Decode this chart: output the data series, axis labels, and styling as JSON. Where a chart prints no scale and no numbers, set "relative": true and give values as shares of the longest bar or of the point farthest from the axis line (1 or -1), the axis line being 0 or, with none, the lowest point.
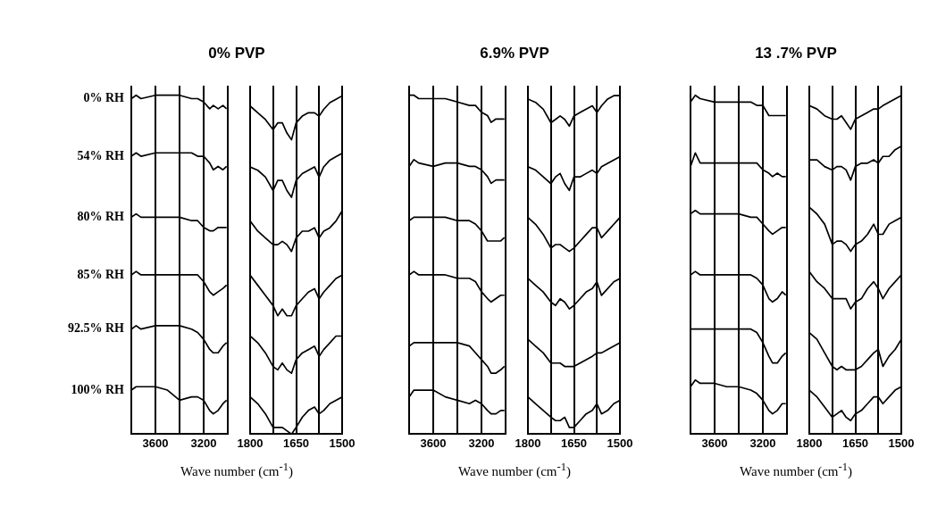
{
  "chart_data": [
    {
      "type": "line",
      "relative": true,
      "title": "0% PVP",
      "xlabel": "Wave number (cm$^{-1}$)",
      "xlim": [
        3800,
        3000
      ],
      "xticks": [
        3600,
        {
          "value": 3400,
          "label": null
        },
        3200
      ],
      "grid": "x",
      "x": [
        3800,
        3760,
        3720,
        3600,
        3500,
        3400,
        3300,
        3250,
        3200,
        3150,
        3120,
        3080,
        3040,
        3010
      ],
      "series": [
        {
          "name": "0% RH",
          "color": "#000000",
          "values": [
            0.99,
            1.0,
            0.99,
            1.0,
            1.0,
            1.0,
            0.99,
            0.99,
            0.98,
            0.96,
            0.97,
            0.96,
            0.97,
            0.96
          ]
        },
        {
          "name": "54% RH",
          "color": "#000000",
          "values": [
            0.82,
            0.83,
            0.82,
            0.83,
            0.83,
            0.83,
            0.83,
            0.82,
            0.82,
            0.8,
            0.78,
            0.79,
            0.78,
            0.79
          ]
        },
        {
          "name": "80% RH",
          "color": "#000000",
          "values": [
            0.64,
            0.65,
            0.64,
            0.64,
            0.64,
            0.64,
            0.63,
            0.63,
            0.61,
            0.6,
            0.6,
            0.61,
            0.61,
            0.61
          ]
        },
        {
          "name": "85% RH",
          "color": "#000000",
          "values": [
            0.47,
            0.48,
            0.47,
            0.47,
            0.47,
            0.47,
            0.47,
            0.47,
            0.45,
            0.42,
            0.41,
            0.42,
            0.43,
            0.44
          ]
        },
        {
          "name": "92.5% RH",
          "color": "#000000",
          "values": [
            0.31,
            0.32,
            0.31,
            0.32,
            0.32,
            0.32,
            0.31,
            0.3,
            0.28,
            0.25,
            0.24,
            0.24,
            0.26,
            0.27
          ]
        },
        {
          "name": "100% RH",
          "color": "#000000",
          "values": [
            0.13,
            0.14,
            0.14,
            0.14,
            0.13,
            0.1,
            0.11,
            0.11,
            0.1,
            0.07,
            0.06,
            0.07,
            0.09,
            0.1
          ]
        }
      ]
    },
    {
      "type": "line",
      "relative": true,
      "xlim": [
        1800,
        1500
      ],
      "xticks": [
        1800,
        {
          "value": 1725,
          "label": null
        },
        1650,
        {
          "value": 1575,
          "label": null
        },
        1500
      ],
      "grid": "x",
      "x": [
        1800,
        1775,
        1750,
        1725,
        1710,
        1695,
        1680,
        1665,
        1650,
        1630,
        1610,
        1590,
        1575,
        1560,
        1540,
        1520,
        1500
      ],
      "series": [
        {
          "color": "#000000",
          "values": [
            0.97,
            0.95,
            0.93,
            0.9,
            0.92,
            0.92,
            0.89,
            0.87,
            0.92,
            0.94,
            0.95,
            0.95,
            0.94,
            0.96,
            0.98,
            0.99,
            1.0
          ]
        },
        {
          "color": "#000000",
          "values": [
            0.79,
            0.78,
            0.76,
            0.72,
            0.75,
            0.75,
            0.72,
            0.7,
            0.75,
            0.77,
            0.78,
            0.79,
            0.76,
            0.79,
            0.81,
            0.82,
            0.83
          ]
        },
        {
          "color": "#000000",
          "values": [
            0.63,
            0.6,
            0.58,
            0.56,
            0.56,
            0.57,
            0.56,
            0.54,
            0.58,
            0.6,
            0.6,
            0.61,
            0.58,
            0.6,
            0.61,
            0.63,
            0.66
          ]
        },
        {
          "color": "#000000",
          "values": [
            0.47,
            0.44,
            0.41,
            0.38,
            0.35,
            0.37,
            0.35,
            0.35,
            0.38,
            0.4,
            0.42,
            0.43,
            0.4,
            0.42,
            0.44,
            0.46,
            0.47
          ]
        },
        {
          "color": "#000000",
          "values": [
            0.29,
            0.27,
            0.24,
            0.2,
            0.19,
            0.21,
            0.19,
            0.18,
            0.22,
            0.24,
            0.25,
            0.26,
            0.23,
            0.25,
            0.27,
            0.29,
            0.29
          ]
        },
        {
          "color": "#000000",
          "values": [
            0.11,
            0.09,
            0.06,
            0.02,
            0.02,
            0.02,
            0.01,
            0.0,
            0.02,
            0.05,
            0.07,
            0.08,
            0.06,
            0.07,
            0.09,
            0.1,
            0.11
          ]
        }
      ]
    },
    {
      "type": "line",
      "relative": true,
      "title": "6.9% PVP",
      "xlabel": "Wave number (cm$^{-1}$)",
      "xlim": [
        3800,
        3000
      ],
      "xticks": [
        3600,
        {
          "value": 3400,
          "label": null
        },
        3200
      ],
      "grid": "x",
      "x": [
        3800,
        3760,
        3720,
        3600,
        3500,
        3400,
        3300,
        3250,
        3200,
        3150,
        3120,
        3080,
        3040,
        3010
      ],
      "series": [
        {
          "color": "#000000",
          "values": [
            1.0,
            1.0,
            0.99,
            0.99,
            0.99,
            0.98,
            0.97,
            0.97,
            0.95,
            0.94,
            0.92,
            0.93,
            0.93,
            0.93
          ]
        },
        {
          "color": "#000000",
          "values": [
            0.79,
            0.81,
            0.8,
            0.79,
            0.8,
            0.8,
            0.79,
            0.79,
            0.78,
            0.76,
            0.74,
            0.75,
            0.75,
            0.75
          ]
        },
        {
          "color": "#000000",
          "values": [
            0.63,
            0.64,
            0.64,
            0.64,
            0.64,
            0.63,
            0.63,
            0.62,
            0.6,
            0.57,
            0.57,
            0.57,
            0.57,
            0.58
          ]
        },
        {
          "color": "#000000",
          "values": [
            0.47,
            0.48,
            0.47,
            0.47,
            0.47,
            0.46,
            0.46,
            0.45,
            0.42,
            0.4,
            0.39,
            0.4,
            0.41,
            0.41
          ]
        },
        {
          "color": "#000000",
          "values": [
            0.26,
            0.27,
            0.27,
            0.27,
            0.27,
            0.27,
            0.26,
            0.24,
            0.22,
            0.2,
            0.18,
            0.18,
            0.19,
            0.2
          ]
        },
        {
          "color": "#000000",
          "values": [
            0.11,
            0.13,
            0.13,
            0.13,
            0.11,
            0.1,
            0.09,
            0.1,
            0.09,
            0.07,
            0.06,
            0.06,
            0.07,
            0.07
          ]
        }
      ]
    },
    {
      "type": "line",
      "relative": true,
      "xlim": [
        1800,
        1500
      ],
      "xticks": [
        1800,
        {
          "value": 1725,
          "label": null
        },
        1650,
        {
          "value": 1575,
          "label": null
        },
        1500
      ],
      "grid": "x",
      "x": [
        1800,
        1775,
        1750,
        1725,
        1710,
        1695,
        1680,
        1665,
        1650,
        1630,
        1610,
        1590,
        1575,
        1560,
        1540,
        1520,
        1500
      ],
      "series": [
        {
          "color": "#000000",
          "values": [
            0.99,
            0.98,
            0.96,
            0.92,
            0.93,
            0.94,
            0.93,
            0.91,
            0.94,
            0.95,
            0.96,
            0.97,
            0.95,
            0.97,
            0.99,
            1.0,
            1.0
          ]
        },
        {
          "color": "#000000",
          "values": [
            0.79,
            0.78,
            0.76,
            0.74,
            0.76,
            0.77,
            0.74,
            0.72,
            0.76,
            0.76,
            0.77,
            0.78,
            0.77,
            0.79,
            0.8,
            0.81,
            0.82
          ]
        },
        {
          "color": "#000000",
          "values": [
            0.64,
            0.62,
            0.59,
            0.55,
            0.56,
            0.56,
            0.55,
            0.54,
            0.55,
            0.57,
            0.59,
            0.61,
            0.61,
            0.58,
            0.6,
            0.62,
            0.64
          ]
        },
        {
          "color": "#000000",
          "values": [
            0.46,
            0.44,
            0.42,
            0.39,
            0.38,
            0.4,
            0.39,
            0.37,
            0.38,
            0.4,
            0.42,
            0.43,
            0.45,
            0.41,
            0.43,
            0.45,
            0.46
          ]
        },
        {
          "color": "#000000",
          "values": [
            0.28,
            0.26,
            0.24,
            0.21,
            0.21,
            0.21,
            0.2,
            0.2,
            0.2,
            0.21,
            0.22,
            0.23,
            0.24,
            0.24,
            0.25,
            0.26,
            0.27
          ]
        },
        {
          "color": "#000000",
          "values": [
            0.11,
            0.09,
            0.07,
            0.05,
            0.04,
            0.04,
            0.05,
            0.02,
            0.02,
            0.04,
            0.06,
            0.07,
            0.09,
            0.06,
            0.07,
            0.09,
            0.1
          ]
        }
      ]
    },
    {
      "type": "line",
      "relative": true,
      "title": "13 .7% PVP",
      "xlabel": "Wave number (cm$^{-1}$)",
      "xlim": [
        3800,
        3000
      ],
      "xticks": [
        3600,
        {
          "value": 3400,
          "label": null
        },
        3200
      ],
      "grid": "x",
      "x": [
        3800,
        3760,
        3720,
        3600,
        3500,
        3400,
        3300,
        3250,
        3200,
        3150,
        3120,
        3080,
        3040,
        3010
      ],
      "series": [
        {
          "color": "#000000",
          "values": [
            0.98,
            1.0,
            0.99,
            0.98,
            0.98,
            0.98,
            0.98,
            0.97,
            0.97,
            0.94,
            0.94,
            0.94,
            0.94,
            0.94
          ]
        },
        {
          "color": "#000000",
          "values": [
            0.79,
            0.83,
            0.8,
            0.8,
            0.8,
            0.8,
            0.8,
            0.8,
            0.78,
            0.77,
            0.76,
            0.77,
            0.76,
            0.76
          ]
        },
        {
          "color": "#000000",
          "values": [
            0.65,
            0.66,
            0.65,
            0.65,
            0.65,
            0.65,
            0.64,
            0.64,
            0.62,
            0.6,
            0.59,
            0.6,
            0.61,
            0.61
          ]
        },
        {
          "color": "#000000",
          "values": [
            0.47,
            0.48,
            0.47,
            0.47,
            0.47,
            0.47,
            0.47,
            0.46,
            0.44,
            0.4,
            0.39,
            0.4,
            0.42,
            0.41
          ]
        },
        {
          "color": "#000000",
          "values": [
            0.31,
            0.31,
            0.31,
            0.31,
            0.31,
            0.31,
            0.31,
            0.3,
            0.27,
            0.23,
            0.21,
            0.21,
            0.23,
            0.24
          ]
        },
        {
          "color": "#000000",
          "values": [
            0.14,
            0.16,
            0.15,
            0.15,
            0.14,
            0.14,
            0.13,
            0.12,
            0.1,
            0.07,
            0.06,
            0.07,
            0.09,
            0.09
          ]
        }
      ]
    },
    {
      "type": "line",
      "relative": true,
      "xlim": [
        1800,
        1500
      ],
      "xticks": [
        1800,
        {
          "value": 1725,
          "label": null
        },
        1650,
        {
          "value": 1575,
          "label": null
        },
        1500
      ],
      "grid": "x",
      "x": [
        1800,
        1775,
        1750,
        1725,
        1710,
        1695,
        1680,
        1665,
        1650,
        1630,
        1610,
        1590,
        1575,
        1560,
        1540,
        1520,
        1500
      ],
      "series": [
        {
          "color": "#000000",
          "values": [
            0.97,
            0.96,
            0.94,
            0.93,
            0.93,
            0.94,
            0.92,
            0.9,
            0.93,
            0.94,
            0.95,
            0.96,
            0.96,
            0.97,
            0.98,
            0.99,
            1.0
          ]
        },
        {
          "color": "#000000",
          "values": [
            0.81,
            0.81,
            0.79,
            0.78,
            0.79,
            0.79,
            0.78,
            0.75,
            0.79,
            0.8,
            0.8,
            0.81,
            0.8,
            0.82,
            0.82,
            0.84,
            0.85
          ]
        },
        {
          "color": "#000000",
          "values": [
            0.67,
            0.65,
            0.62,
            0.56,
            0.57,
            0.57,
            0.56,
            0.54,
            0.56,
            0.57,
            0.59,
            0.62,
            0.59,
            0.59,
            0.62,
            0.63,
            0.64
          ]
        },
        {
          "color": "#000000",
          "values": [
            0.48,
            0.45,
            0.43,
            0.4,
            0.4,
            0.4,
            0.4,
            0.37,
            0.39,
            0.4,
            0.43,
            0.45,
            0.43,
            0.4,
            0.43,
            0.45,
            0.47
          ]
        },
        {
          "color": "#000000",
          "values": [
            0.3,
            0.28,
            0.24,
            0.2,
            0.19,
            0.2,
            0.19,
            0.19,
            0.19,
            0.2,
            0.22,
            0.24,
            0.25,
            0.2,
            0.23,
            0.25,
            0.28
          ]
        },
        {
          "color": "#000000",
          "values": [
            0.13,
            0.11,
            0.08,
            0.05,
            0.06,
            0.07,
            0.05,
            0.04,
            0.06,
            0.07,
            0.09,
            0.11,
            0.11,
            0.09,
            0.11,
            0.13,
            0.14
          ]
        }
      ]
    }
  ]
}
